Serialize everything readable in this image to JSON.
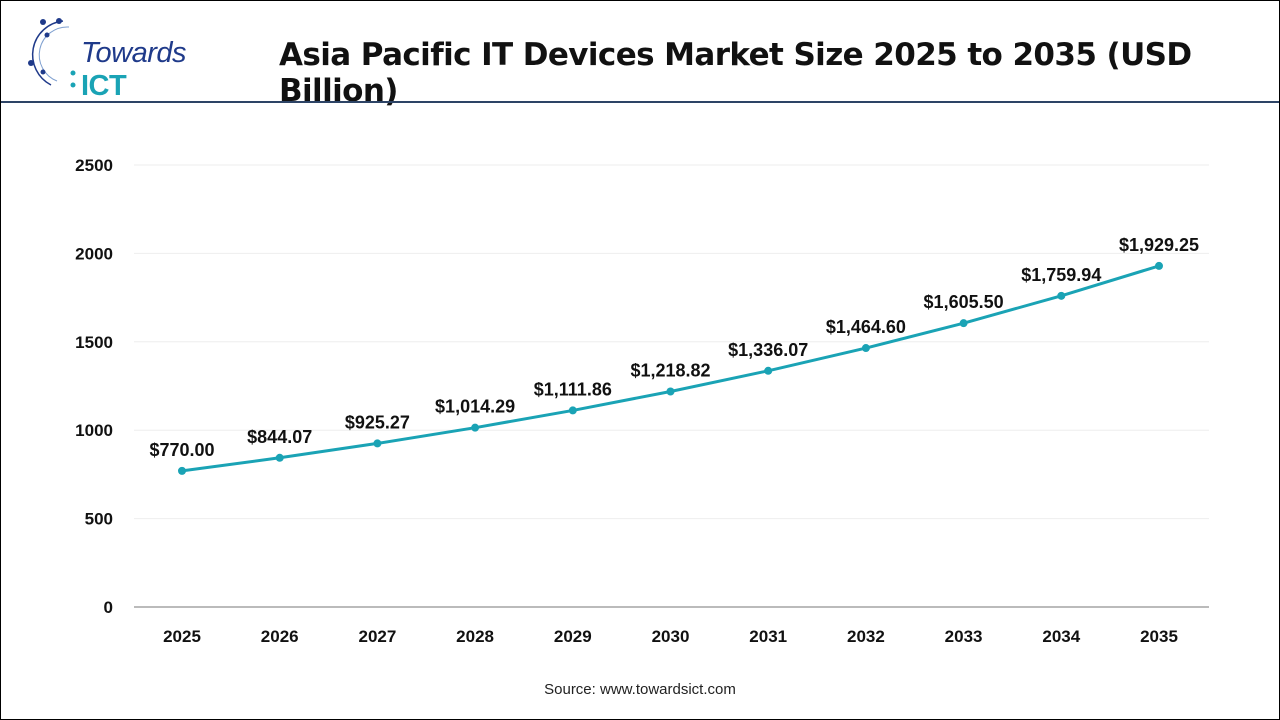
{
  "logo": {
    "text1": "Towards",
    "text2": "ICT"
  },
  "title": "Asia Pacific IT Devices Market Size 2025 to 2035 (USD Billion)",
  "source": "Source: www.towardsict.com",
  "chart_data": {
    "type": "line",
    "title": "Asia Pacific IT Devices Market Size 2025 to 2035 (USD Billion)",
    "categories": [
      "2025",
      "2026",
      "2027",
      "2028",
      "2029",
      "2030",
      "2031",
      "2032",
      "2033",
      "2034",
      "2035"
    ],
    "values": [
      770.0,
      844.07,
      925.27,
      1014.29,
      1111.86,
      1218.82,
      1336.07,
      1464.6,
      1605.5,
      1759.94,
      1929.25
    ],
    "data_labels": [
      "$770.00",
      "$844.07",
      "$925.27",
      "$1,014.29",
      "$1,111.86",
      "$1,218.82",
      "$1,336.07",
      "$1,464.60",
      "$1,605.50",
      "$1,759.94",
      "$1,929.25"
    ],
    "yticks": [
      0,
      500,
      1000,
      1500,
      2000,
      2500
    ],
    "ylim": [
      0,
      2500
    ],
    "grid": true,
    "line_color": "#1aa3b5"
  }
}
